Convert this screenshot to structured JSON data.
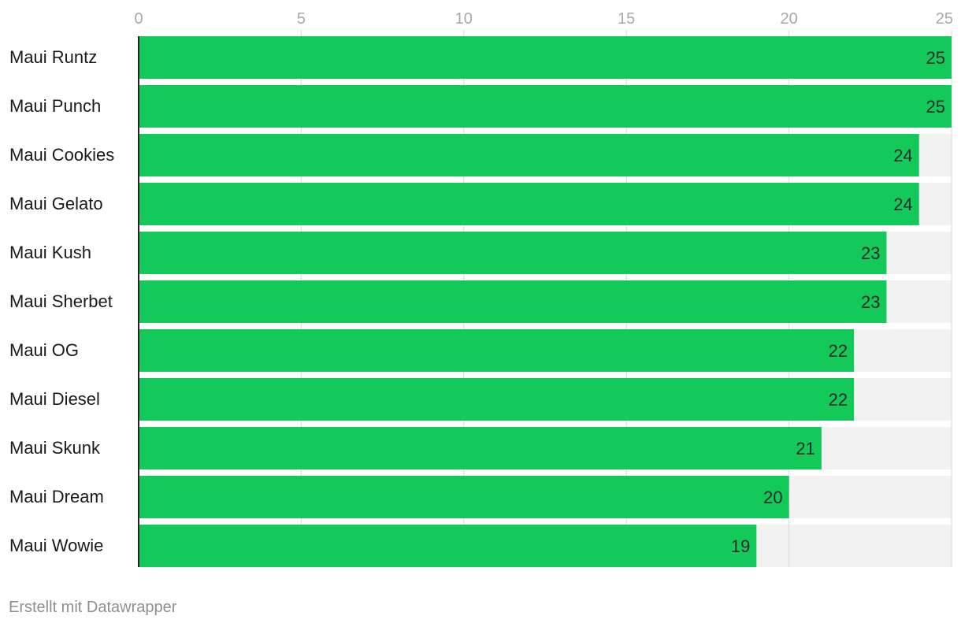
{
  "chart_data": {
    "type": "bar",
    "orientation": "horizontal",
    "categories": [
      "Maui Runtz",
      "Maui Punch",
      "Maui Cookies",
      "Maui Gelato",
      "Maui Kush",
      "Maui Sherbet",
      "Maui OG",
      "Maui Diesel",
      "Maui Skunk",
      "Maui Dream",
      "Maui Wowie"
    ],
    "values": [
      25,
      25,
      24,
      24,
      23,
      23,
      22,
      22,
      21,
      20,
      19
    ],
    "xlim": [
      0,
      25
    ],
    "ticks": [
      0,
      5,
      10,
      15,
      20,
      25
    ],
    "grid": true,
    "title": "",
    "xlabel": "",
    "ylabel": "",
    "bar_color": "#13c95a",
    "track_color": "#f2f2f2",
    "data_labels": true
  },
  "footer": {
    "credit": "Erstellt mit Datawrapper"
  }
}
